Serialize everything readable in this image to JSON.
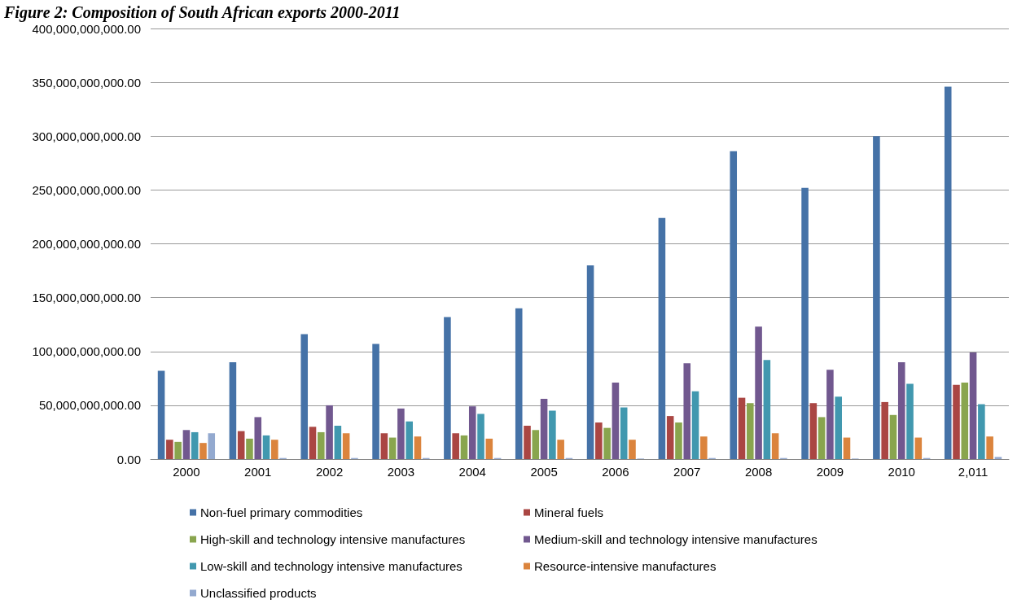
{
  "chart_data": {
    "type": "bar",
    "title": "Figure 2: Composition of South African exports 2000-2011",
    "categories": [
      "2000",
      "2001",
      "2002",
      "2003",
      "2004",
      "2005",
      "2006",
      "2007",
      "2008",
      "2009",
      "2010",
      "2,011"
    ],
    "series": [
      {
        "name": "Non-fuel primary commodities",
        "color": "#4572a7",
        "values": [
          82000000000,
          90000000000,
          116000000000,
          107000000000,
          132000000000,
          140000000000,
          180000000000,
          224000000000,
          286000000000,
          252000000000,
          300000000000,
          346000000000
        ]
      },
      {
        "name": "Mineral fuels",
        "color": "#aa4643",
        "values": [
          18000000000,
          26000000000,
          30000000000,
          24000000000,
          24000000000,
          31000000000,
          34000000000,
          40000000000,
          57000000000,
          52000000000,
          53000000000,
          69000000000
        ]
      },
      {
        "name": "High-skill and technology intensive manufactures",
        "color": "#89a54e",
        "values": [
          16000000000,
          19000000000,
          25000000000,
          20000000000,
          22000000000,
          27000000000,
          29000000000,
          34000000000,
          52000000000,
          39000000000,
          41000000000,
          71000000000
        ]
      },
      {
        "name": "Medium-skill and technology intensive manufactures",
        "color": "#71588f",
        "values": [
          27000000000,
          39000000000,
          50000000000,
          47000000000,
          49000000000,
          56000000000,
          71000000000,
          89000000000,
          123000000000,
          83000000000,
          90000000000,
          99000000000
        ]
      },
      {
        "name": "Low-skill and technology intensive manufactures",
        "color": "#4198af",
        "values": [
          25000000000,
          22000000000,
          31000000000,
          35000000000,
          42000000000,
          45000000000,
          48000000000,
          63000000000,
          92000000000,
          58000000000,
          70000000000,
          51000000000
        ]
      },
      {
        "name": "Resource-intensive manufactures",
        "color": "#db843d",
        "values": [
          15000000000,
          18000000000,
          24000000000,
          21000000000,
          19000000000,
          18000000000,
          18000000000,
          21000000000,
          24000000000,
          20000000000,
          20000000000,
          21000000000
        ]
      },
      {
        "name": "Unclassified products",
        "color": "#93a9cf",
        "values": [
          24000000000,
          1000000000,
          1000000000,
          1000000000,
          1000000000,
          1000000000,
          500000000,
          1000000000,
          1000000000,
          500000000,
          1000000000,
          2000000000
        ]
      }
    ],
    "ylim": [
      0,
      400000000000
    ],
    "yticks": [
      {
        "value": 0,
        "label": "0.00"
      },
      {
        "value": 50000000000,
        "label": "50,000,000,000.00"
      },
      {
        "value": 100000000000,
        "label": "100,000,000,000.00"
      },
      {
        "value": 150000000000,
        "label": "150,000,000,000.00"
      },
      {
        "value": 200000000000,
        "label": "200,000,000,000.00"
      },
      {
        "value": 250000000000,
        "label": "250,000,000,000.00"
      },
      {
        "value": 300000000000,
        "label": "300,000,000,000.00"
      },
      {
        "value": 350000000000,
        "label": "350,000,000,000.00"
      },
      {
        "value": 400000000000,
        "label": "400,000,000,000.00"
      }
    ],
    "grid": "y",
    "legend": "bottom"
  }
}
